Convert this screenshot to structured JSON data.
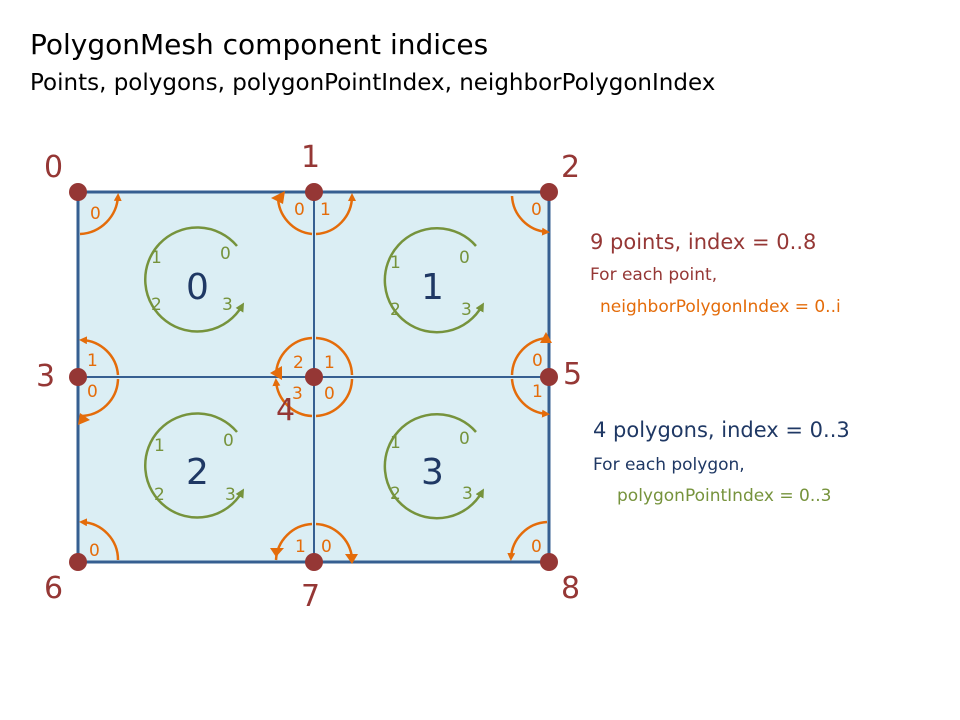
{
  "header": {
    "title": "PolygonMesh component indices",
    "subtitle": "Points, polygons, polygonPointIndex, neighborPolygonIndex"
  },
  "info": {
    "points_heading": "9 points, index = 0..8",
    "points_line1": "For each point,",
    "points_line2": "neighborPolygonIndex = 0..i",
    "polygons_heading": "4 polygons, index = 0..3",
    "polygons_line1": "For each polygon,",
    "polygons_line2": "polygonPointIndex = 0..3"
  },
  "colors": {
    "point": "#953735",
    "polygon_label": "#1f3864",
    "fill": "#dbeef4",
    "edge": "#365f91",
    "polygon_point_index": "#76933c",
    "neighbor_index": "#e46c0a"
  },
  "points": [
    {
      "index": "0"
    },
    {
      "index": "1"
    },
    {
      "index": "2"
    },
    {
      "index": "3"
    },
    {
      "index": "4"
    },
    {
      "index": "5"
    },
    {
      "index": "6"
    },
    {
      "index": "7"
    },
    {
      "index": "8"
    }
  ],
  "polygons": [
    {
      "index": "0",
      "point_indices": [
        "0",
        "1",
        "2",
        "3"
      ]
    },
    {
      "index": "1",
      "point_indices": [
        "0",
        "1",
        "2",
        "3"
      ]
    },
    {
      "index": "2",
      "point_indices": [
        "0",
        "1",
        "2",
        "3"
      ]
    },
    {
      "index": "3",
      "point_indices": [
        "0",
        "1",
        "2",
        "3"
      ]
    }
  ],
  "neighbor_labels": [
    {
      "point": "0",
      "labels": [
        "0"
      ]
    },
    {
      "point": "1",
      "labels": [
        "0",
        "1"
      ]
    },
    {
      "point": "2",
      "labels": [
        "0"
      ]
    },
    {
      "point": "3",
      "labels": [
        "1",
        "0"
      ]
    },
    {
      "point": "4",
      "labels": [
        "2",
        "1",
        "3",
        "0"
      ]
    },
    {
      "point": "5",
      "labels": [
        "0",
        "1"
      ]
    },
    {
      "point": "6",
      "labels": [
        "0"
      ]
    },
    {
      "point": "7",
      "labels": [
        "1",
        "0"
      ]
    },
    {
      "point": "8",
      "labels": [
        "0"
      ]
    }
  ]
}
